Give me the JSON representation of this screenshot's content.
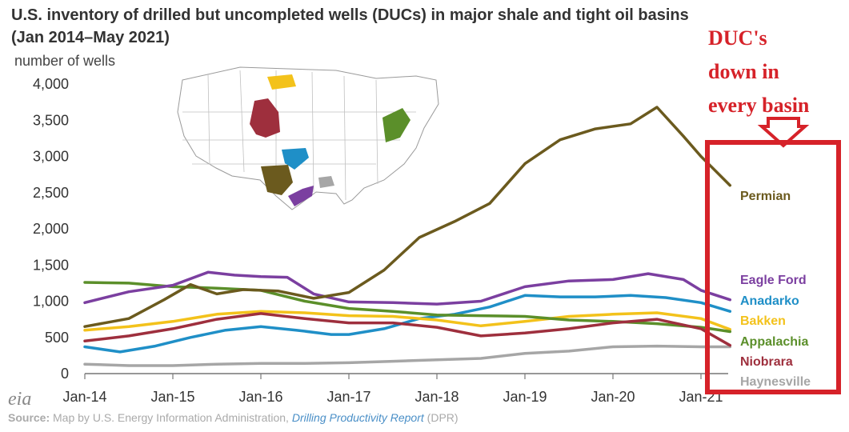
{
  "chart_data": {
    "type": "line",
    "title": "U.S. inventory of drilled but uncompleted wells (DUCs) in major shale and tight oil basins",
    "subtitle": "(Jan 2014–May 2021)",
    "ylabel": "number of wells",
    "xlabel": "",
    "ylim": [
      0,
      4000
    ],
    "yticks": [
      0,
      500,
      1000,
      1500,
      2000,
      2500,
      3000,
      3500,
      4000
    ],
    "ytick_labels": [
      "0",
      "500",
      "1,000",
      "1,500",
      "2,000",
      "2,500",
      "3,000",
      "3,500",
      "4,000"
    ],
    "x_start": 2014.0,
    "x_end": 2021.33,
    "xticks": [
      2014,
      2015,
      2016,
      2017,
      2018,
      2019,
      2020,
      2021
    ],
    "xtick_labels": [
      "Jan-14",
      "Jan-15",
      "Jan-16",
      "Jan-17",
      "Jan-18",
      "Jan-19",
      "Jan-20",
      "Jan-21"
    ],
    "series": [
      {
        "name": "Permian",
        "color": "#6b5a1e",
        "points": [
          [
            2014.0,
            650
          ],
          [
            2014.5,
            760
          ],
          [
            2014.9,
            1020
          ],
          [
            2015.2,
            1230
          ],
          [
            2015.5,
            1100
          ],
          [
            2015.8,
            1160
          ],
          [
            2016.2,
            1140
          ],
          [
            2016.6,
            1040
          ],
          [
            2017.0,
            1120
          ],
          [
            2017.4,
            1430
          ],
          [
            2017.8,
            1880
          ],
          [
            2018.2,
            2100
          ],
          [
            2018.6,
            2350
          ],
          [
            2019.0,
            2900
          ],
          [
            2019.4,
            3230
          ],
          [
            2019.8,
            3380
          ],
          [
            2020.2,
            3450
          ],
          [
            2020.5,
            3680
          ],
          [
            2020.8,
            3280
          ],
          [
            2021.0,
            3000
          ],
          [
            2021.33,
            2600
          ]
        ]
      },
      {
        "name": "Eagle Ford",
        "color": "#7b3fa0",
        "points": [
          [
            2014.0,
            980
          ],
          [
            2014.5,
            1130
          ],
          [
            2015.0,
            1220
          ],
          [
            2015.4,
            1400
          ],
          [
            2015.7,
            1360
          ],
          [
            2016.0,
            1340
          ],
          [
            2016.3,
            1330
          ],
          [
            2016.6,
            1100
          ],
          [
            2017.0,
            990
          ],
          [
            2017.5,
            980
          ],
          [
            2018.0,
            960
          ],
          [
            2018.5,
            1000
          ],
          [
            2019.0,
            1200
          ],
          [
            2019.5,
            1280
          ],
          [
            2020.0,
            1300
          ],
          [
            2020.4,
            1380
          ],
          [
            2020.8,
            1300
          ],
          [
            2021.0,
            1150
          ],
          [
            2021.33,
            1020
          ]
        ]
      },
      {
        "name": "Anadarko",
        "color": "#1f8fc7",
        "points": [
          [
            2014.0,
            370
          ],
          [
            2014.4,
            300
          ],
          [
            2014.8,
            380
          ],
          [
            2015.2,
            500
          ],
          [
            2015.6,
            600
          ],
          [
            2016.0,
            650
          ],
          [
            2016.4,
            600
          ],
          [
            2016.8,
            540
          ],
          [
            2017.0,
            540
          ],
          [
            2017.4,
            620
          ],
          [
            2017.8,
            760
          ],
          [
            2018.2,
            820
          ],
          [
            2018.6,
            920
          ],
          [
            2019.0,
            1080
          ],
          [
            2019.4,
            1060
          ],
          [
            2019.8,
            1060
          ],
          [
            2020.2,
            1080
          ],
          [
            2020.6,
            1050
          ],
          [
            2021.0,
            980
          ],
          [
            2021.33,
            860
          ]
        ]
      },
      {
        "name": "Bakken",
        "color": "#f3c21b",
        "points": [
          [
            2014.0,
            600
          ],
          [
            2014.5,
            650
          ],
          [
            2015.0,
            720
          ],
          [
            2015.5,
            820
          ],
          [
            2016.0,
            860
          ],
          [
            2016.5,
            840
          ],
          [
            2017.0,
            800
          ],
          [
            2017.5,
            790
          ],
          [
            2018.0,
            740
          ],
          [
            2018.5,
            660
          ],
          [
            2019.0,
            720
          ],
          [
            2019.5,
            790
          ],
          [
            2020.0,
            820
          ],
          [
            2020.5,
            840
          ],
          [
            2021.0,
            760
          ],
          [
            2021.33,
            610
          ]
        ]
      },
      {
        "name": "Appalachia",
        "color": "#5b8f2a",
        "points": [
          [
            2014.0,
            1260
          ],
          [
            2014.5,
            1250
          ],
          [
            2015.0,
            1200
          ],
          [
            2015.5,
            1180
          ],
          [
            2016.0,
            1150
          ],
          [
            2016.5,
            1000
          ],
          [
            2017.0,
            900
          ],
          [
            2017.5,
            860
          ],
          [
            2018.0,
            810
          ],
          [
            2018.5,
            800
          ],
          [
            2019.0,
            790
          ],
          [
            2019.5,
            740
          ],
          [
            2020.0,
            720
          ],
          [
            2020.5,
            690
          ],
          [
            2021.0,
            640
          ],
          [
            2021.33,
            580
          ]
        ]
      },
      {
        "name": "Niobrara",
        "color": "#9e2f3d",
        "points": [
          [
            2014.0,
            450
          ],
          [
            2014.5,
            520
          ],
          [
            2015.0,
            620
          ],
          [
            2015.5,
            750
          ],
          [
            2016.0,
            830
          ],
          [
            2016.5,
            760
          ],
          [
            2017.0,
            700
          ],
          [
            2017.5,
            700
          ],
          [
            2018.0,
            640
          ],
          [
            2018.5,
            520
          ],
          [
            2019.0,
            560
          ],
          [
            2019.5,
            620
          ],
          [
            2020.0,
            700
          ],
          [
            2020.5,
            750
          ],
          [
            2021.0,
            620
          ],
          [
            2021.33,
            390
          ]
        ]
      },
      {
        "name": "Haynesville",
        "color": "#a6a6a6",
        "points": [
          [
            2014.0,
            130
          ],
          [
            2014.5,
            110
          ],
          [
            2015.0,
            110
          ],
          [
            2015.5,
            130
          ],
          [
            2016.0,
            140
          ],
          [
            2016.5,
            140
          ],
          [
            2017.0,
            150
          ],
          [
            2017.5,
            170
          ],
          [
            2018.0,
            190
          ],
          [
            2018.5,
            210
          ],
          [
            2019.0,
            280
          ],
          [
            2019.5,
            310
          ],
          [
            2020.0,
            370
          ],
          [
            2020.5,
            380
          ],
          [
            2021.0,
            370
          ],
          [
            2021.33,
            370
          ]
        ]
      }
    ]
  },
  "annotation": {
    "text_lines": [
      "DUC's",
      "down in",
      "every basin"
    ],
    "color": "#d62229"
  },
  "source": {
    "prefix": "Source:",
    "text": "Map by U.S. Energy Information Administration,",
    "report": "Drilling Productivity Report",
    "suffix": "(DPR)"
  },
  "logo": {
    "text": "eia"
  }
}
